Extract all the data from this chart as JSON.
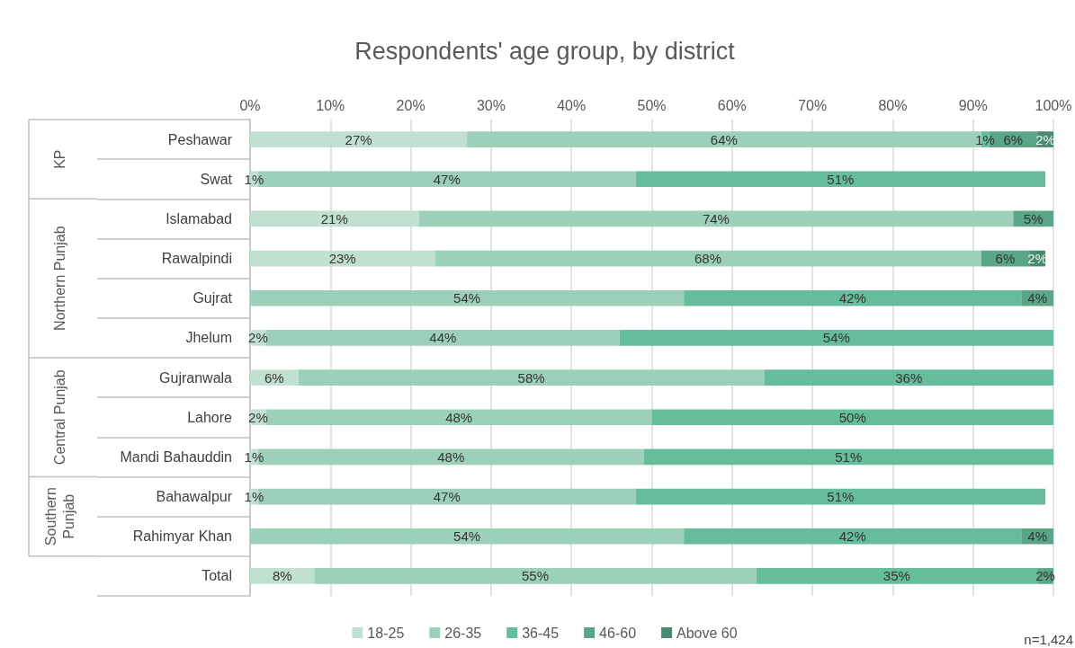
{
  "chart_data": {
    "type": "bar",
    "orientation": "horizontal",
    "stacked": true,
    "title": "Respondents' age group, by district",
    "categories": [
      "Peshawar",
      "Swat",
      "Islamabad",
      "Rawalpindi",
      "Gujrat",
      "Jhelum",
      "Gujranwala",
      "Lahore",
      "Mandi Bahauddin",
      "Bahawalpur",
      "Rahimyar Khan",
      "Total"
    ],
    "series": [
      {
        "name": "18-25",
        "color": "#c2e0d2",
        "values": [
          27,
          1,
          21,
          23,
          null,
          2,
          6,
          2,
          1,
          1,
          null,
          8
        ],
        "value_labels": [
          "27%",
          "1%",
          "21%",
          "23%",
          null,
          "2%",
          "6%",
          "2%",
          "1%",
          "1%",
          null,
          "8%"
        ]
      },
      {
        "name": "26-35",
        "color": "#9dd0b9",
        "values": [
          64,
          47,
          74,
          68,
          54,
          44,
          58,
          48,
          48,
          47,
          54,
          55
        ],
        "value_labels": [
          "64%",
          "47%",
          "74%",
          "68%",
          "54%",
          "44%",
          "58%",
          "48%",
          "48%",
          "47%",
          "54%",
          "55%"
        ]
      },
      {
        "name": "36-45",
        "color": "#66bd9c",
        "values": [
          1,
          51,
          null,
          null,
          42,
          54,
          36,
          50,
          51,
          51,
          42,
          35
        ],
        "value_labels": [
          "1%",
          "51%",
          null,
          null,
          "42%",
          "54%",
          "36%",
          "50%",
          "51%",
          "51%",
          "42%",
          "35%"
        ]
      },
      {
        "name": "46-60",
        "color": "#5aa687",
        "values": [
          6,
          null,
          5,
          6,
          4,
          null,
          null,
          null,
          null,
          null,
          4,
          2
        ],
        "value_labels": [
          "6%",
          null,
          "5%",
          "6%",
          "4%",
          null,
          null,
          null,
          null,
          null,
          "4%",
          "2%"
        ]
      },
      {
        "name": "Above 60",
        "color": "#4a8a6e",
        "values": [
          2,
          null,
          null,
          2,
          null,
          null,
          null,
          null,
          null,
          null,
          null,
          null
        ],
        "value_labels": [
          "2%",
          null,
          null,
          "2%",
          null,
          null,
          null,
          null,
          null,
          null,
          null,
          null
        ]
      }
    ],
    "xlim": [
      0,
      100
    ],
    "xticks": [
      {
        "value": 0,
        "label": "0%"
      },
      {
        "value": 10,
        "label": "10%"
      },
      {
        "value": 20,
        "label": "20%"
      },
      {
        "value": 30,
        "label": "30%"
      },
      {
        "value": 40,
        "label": "40%"
      },
      {
        "value": 50,
        "label": "50%"
      },
      {
        "value": 60,
        "label": "60%"
      },
      {
        "value": 70,
        "label": "70%"
      },
      {
        "value": 80,
        "label": "80%"
      },
      {
        "value": 90,
        "label": "90%"
      },
      {
        "value": 100,
        "label": "100%"
      }
    ],
    "grid": "x",
    "legend": "bottom",
    "annotations": [
      "KP",
      "Northern Punjab",
      "Central Punjab",
      "Southern Punjab",
      "n=1,424"
    ]
  }
}
